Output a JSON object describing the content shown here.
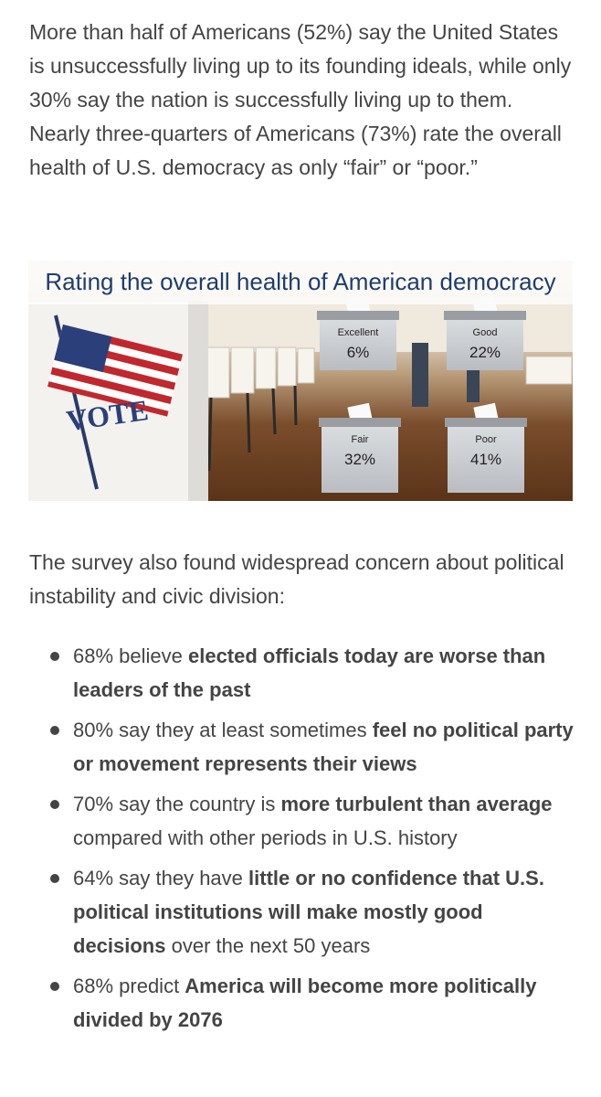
{
  "intro": "More than half of Americans (52%) say the United States is unsuccessfully living up to its founding ideals, while only 30% say the nation is successfully living up to them. Nearly three-quarters of Americans (73%) rate the overall health of U.S. democracy as only “fair” or “poor.”",
  "infographic": {
    "title": "Rating the overall health of American democracy",
    "sign_text": "VOTE",
    "boxes": [
      {
        "label": "Excellent",
        "value": "6%"
      },
      {
        "label": "Good",
        "value": "22%"
      },
      {
        "label": "Fair",
        "value": "32%"
      },
      {
        "label": "Poor",
        "value": "41%"
      }
    ]
  },
  "lead": "The survey also found widespread concern about political instability and civic division:",
  "bullets": [
    {
      "segments": [
        {
          "text": "68% believe ",
          "bold": false
        },
        {
          "text": "elected officials today are worse than leaders of the past",
          "bold": true
        }
      ]
    },
    {
      "segments": [
        {
          "text": "80% say they at least sometimes ",
          "bold": false
        },
        {
          "text": "feel no political party or movement represents their views",
          "bold": true
        }
      ]
    },
    {
      "segments": [
        {
          "text": "70% say the country is ",
          "bold": false
        },
        {
          "text": "more turbulent than average",
          "bold": true
        },
        {
          "text": " compared with other periods in U.S. history",
          "bold": false
        }
      ]
    },
    {
      "segments": [
        {
          "text": "64% say they have ",
          "bold": false
        },
        {
          "text": "little or no confidence that U.S. political institutions will make mostly good decisions",
          "bold": true
        },
        {
          "text": " over the next 50 years",
          "bold": false
        }
      ]
    },
    {
      "segments": [
        {
          "text": "68% predict ",
          "bold": false
        },
        {
          "text": "America will become more politically divided by 2076",
          "bold": true
        }
      ]
    }
  ]
}
